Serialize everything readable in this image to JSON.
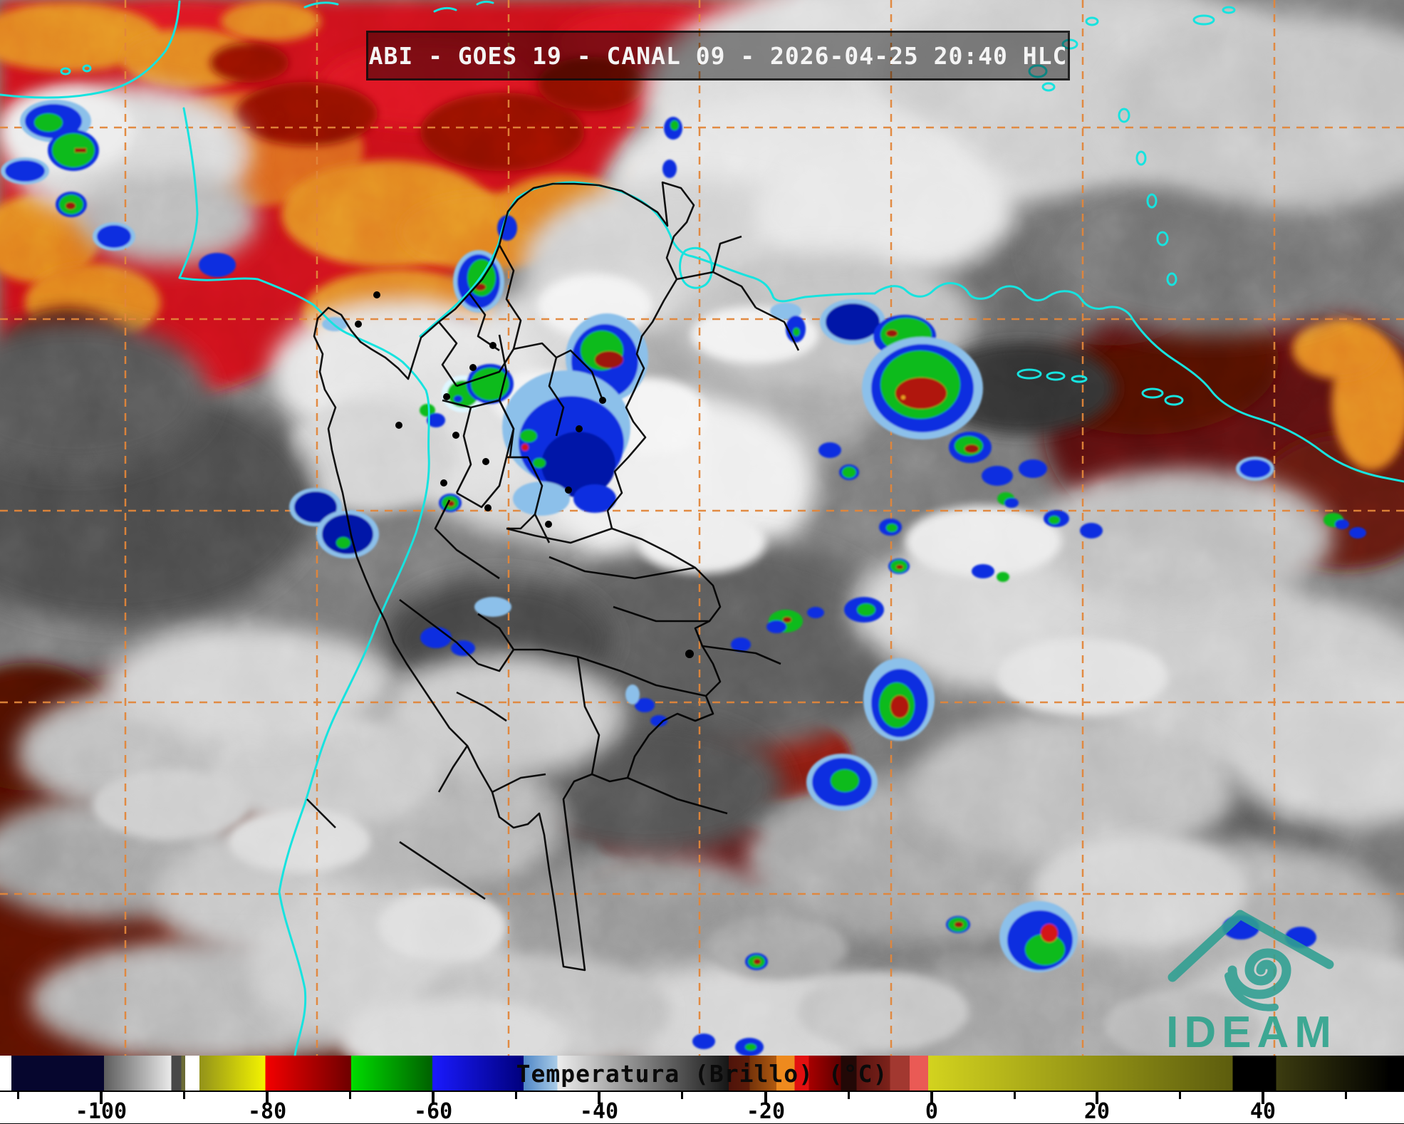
{
  "title_bar": {
    "text": "ABI - GOES 19 - CANAL 09 - 2026-04-25 20:40 HLC"
  },
  "logo": {
    "text": "IDEAM",
    "color": "#2d9f91"
  },
  "colorbar": {
    "label": "Temperatura (Brillo) (°C)",
    "unit": "°C",
    "value_range": [
      -112,
      57
    ],
    "major_ticks": [
      {
        "label": "-100",
        "pct": 7.2
      },
      {
        "label": "-80",
        "pct": 19.03
      },
      {
        "label": "-60",
        "pct": 30.85
      },
      {
        "label": "-40",
        "pct": 42.67
      },
      {
        "label": "-20",
        "pct": 54.54
      },
      {
        "label": "0",
        "pct": 66.36
      },
      {
        "label": "20",
        "pct": 78.13
      },
      {
        "label": "40",
        "pct": 89.95
      }
    ],
    "minor_ticks_pct": [
      1.29,
      13.12,
      24.94,
      36.76,
      48.6,
      60.45,
      72.25,
      84.04,
      95.87
    ],
    "segments": [
      [
        0.0,
        0.8,
        "#ffffff",
        "#ffffff"
      ],
      [
        0.8,
        7.4,
        "#06062e",
        "#06062e"
      ],
      [
        7.4,
        12.2,
        "#5c5c5c",
        "#eaeaea"
      ],
      [
        12.2,
        12.9,
        "#484848",
        "#484848"
      ],
      [
        12.9,
        13.2,
        "#6b6b35",
        "#6b6b35"
      ],
      [
        13.2,
        14.2,
        "#ffffff",
        "#ffffff"
      ],
      [
        14.2,
        18.9,
        "#92921a",
        "#f4f400"
      ],
      [
        18.9,
        25.0,
        "#f40000",
        "#6e0000"
      ],
      [
        25.0,
        30.8,
        "#00dc00",
        "#006000"
      ],
      [
        30.8,
        37.3,
        "#1a1aff",
        "#00007c"
      ],
      [
        37.3,
        39.7,
        "#4f86c6",
        "#a9cce8"
      ],
      [
        39.7,
        51.9,
        "#ededed",
        "#161616"
      ],
      [
        51.9,
        53.4,
        "#4e130a",
        "#5e1c09"
      ],
      [
        53.4,
        55.3,
        "#74330a",
        "#b05a10"
      ],
      [
        55.3,
        56.6,
        "#ee8a1e",
        "#ee8a1e"
      ],
      [
        56.6,
        57.6,
        "#e21010",
        "#e21010"
      ],
      [
        57.6,
        59.9,
        "#a80000",
        "#5c0000"
      ],
      [
        59.9,
        61.0,
        "#220806",
        "#220806"
      ],
      [
        61.0,
        63.4,
        "#571310",
        "#7c221a"
      ],
      [
        63.4,
        64.8,
        "#a23830",
        "#a23830"
      ],
      [
        64.8,
        66.1,
        "#ea5a55",
        "#ea5a55"
      ],
      [
        66.1,
        87.8,
        "#d3d31e",
        "#5c5c0e"
      ],
      [
        87.8,
        90.9,
        "#000000",
        "#000000"
      ],
      [
        90.9,
        98.8,
        "#3c3c10",
        "#020200"
      ],
      [
        98.8,
        100.0,
        "#000000",
        "#000000"
      ]
    ]
  },
  "map": {
    "gridline_color": "#e2863a",
    "coastline_color": "#17e3df",
    "border_color": "#000000",
    "city_marker_color": "#000000"
  }
}
